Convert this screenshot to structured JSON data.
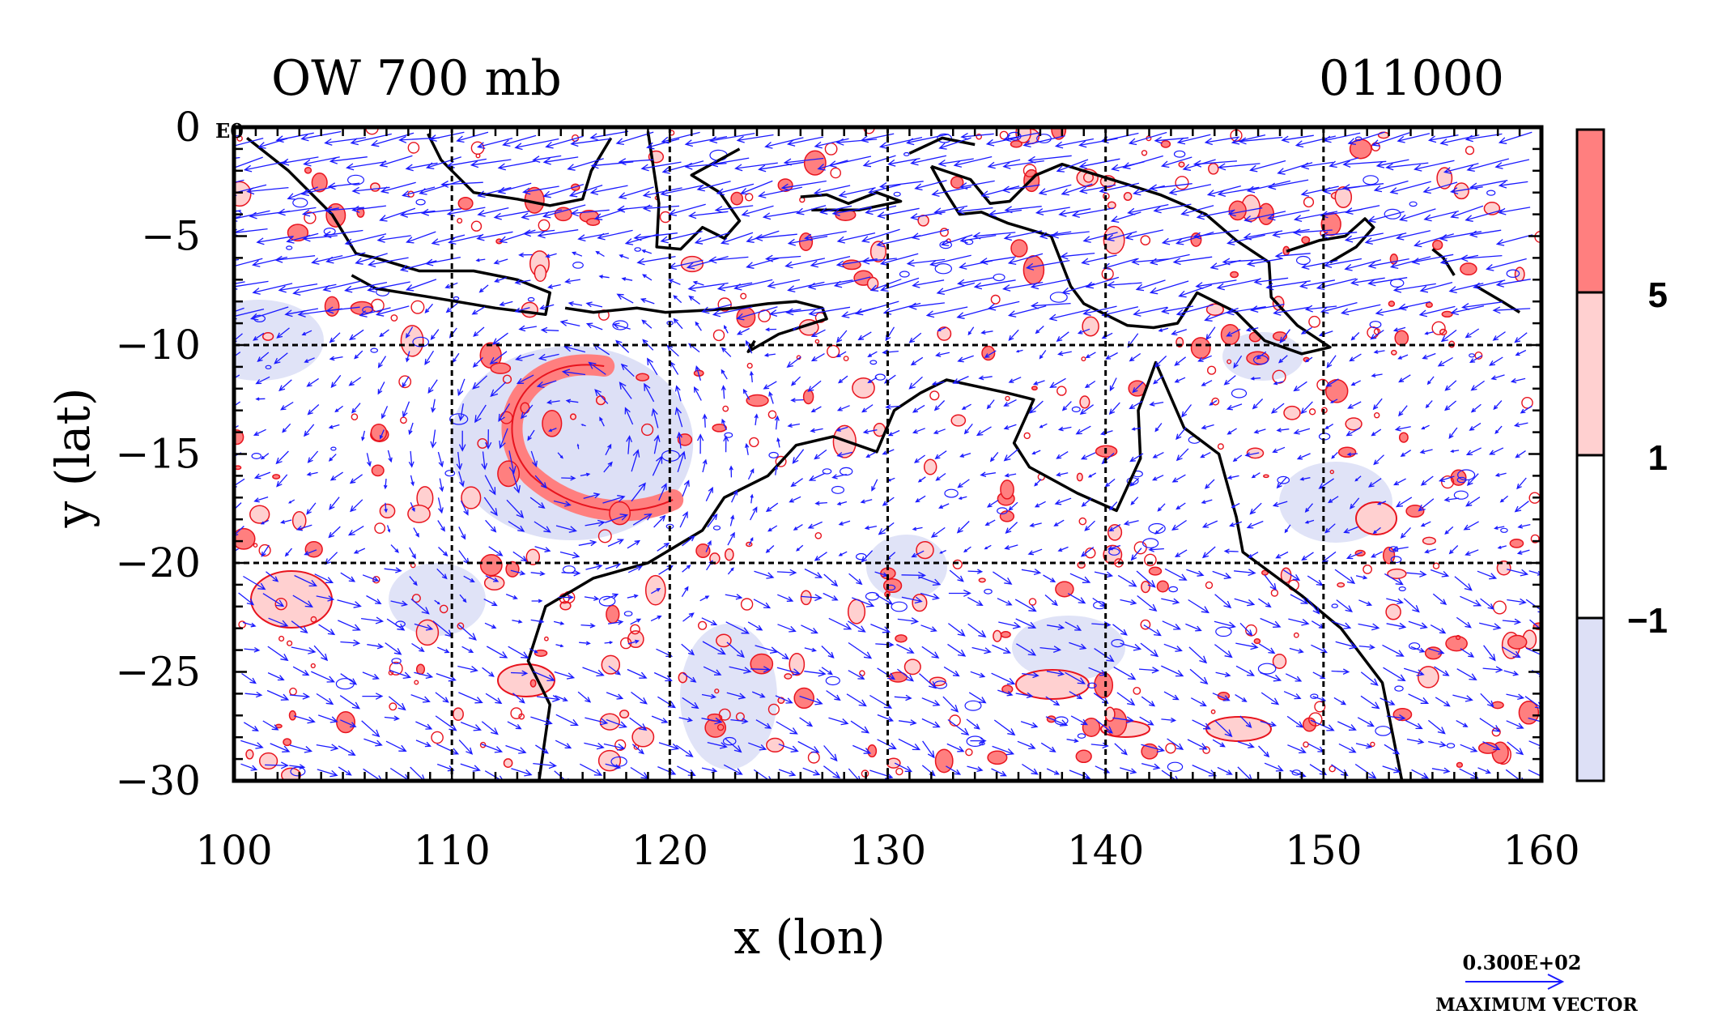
{
  "chart_data": {
    "type": "heatmap",
    "title": "OW 700 mb",
    "time_label": "011000",
    "corner_label": "E0",
    "xlabel": "x (lon)",
    "ylabel": "y (lat)",
    "xlim": [
      100,
      160
    ],
    "ylim": [
      -30,
      0
    ],
    "x_ticks": [
      100,
      110,
      120,
      130,
      140,
      150,
      160
    ],
    "x_tick_labels": [
      "100",
      "110",
      "120",
      "130",
      "140",
      "150",
      "160"
    ],
    "y_ticks": [
      0,
      -5,
      -10,
      -15,
      -20,
      -25,
      -30
    ],
    "y_tick_labels": [
      "0",
      "−5",
      "−10",
      "−15",
      "−20",
      "−25",
      "−30"
    ],
    "grid_lon": [
      110,
      120,
      130,
      140,
      150
    ],
    "grid_lat": [
      -10,
      -20
    ],
    "colorbar": {
      "levels": [
        -1,
        1,
        5
      ],
      "level_labels": [
        "−1",
        "1",
        "5"
      ],
      "bands": [
        {
          "range": [
            null,
            -1
          ],
          "color": "#dde0f6"
        },
        {
          "range": [
            -1,
            1
          ],
          "color": "#ffffff"
        },
        {
          "range": [
            1,
            5
          ],
          "color": "#ffd0d0"
        },
        {
          "range": [
            5,
            null
          ],
          "color": "#ff7f7f"
        }
      ]
    },
    "vector_key": {
      "value_label": "0.300E+02",
      "caption": "MAXIMUM VECTOR",
      "color": "#1a1aff"
    },
    "cyclone_center": {
      "lon": 115.5,
      "lat": -14.5
    },
    "colors": {
      "vector": "#1a1aff",
      "contour_positive": "#e8141e",
      "coast": "#000000"
    }
  }
}
